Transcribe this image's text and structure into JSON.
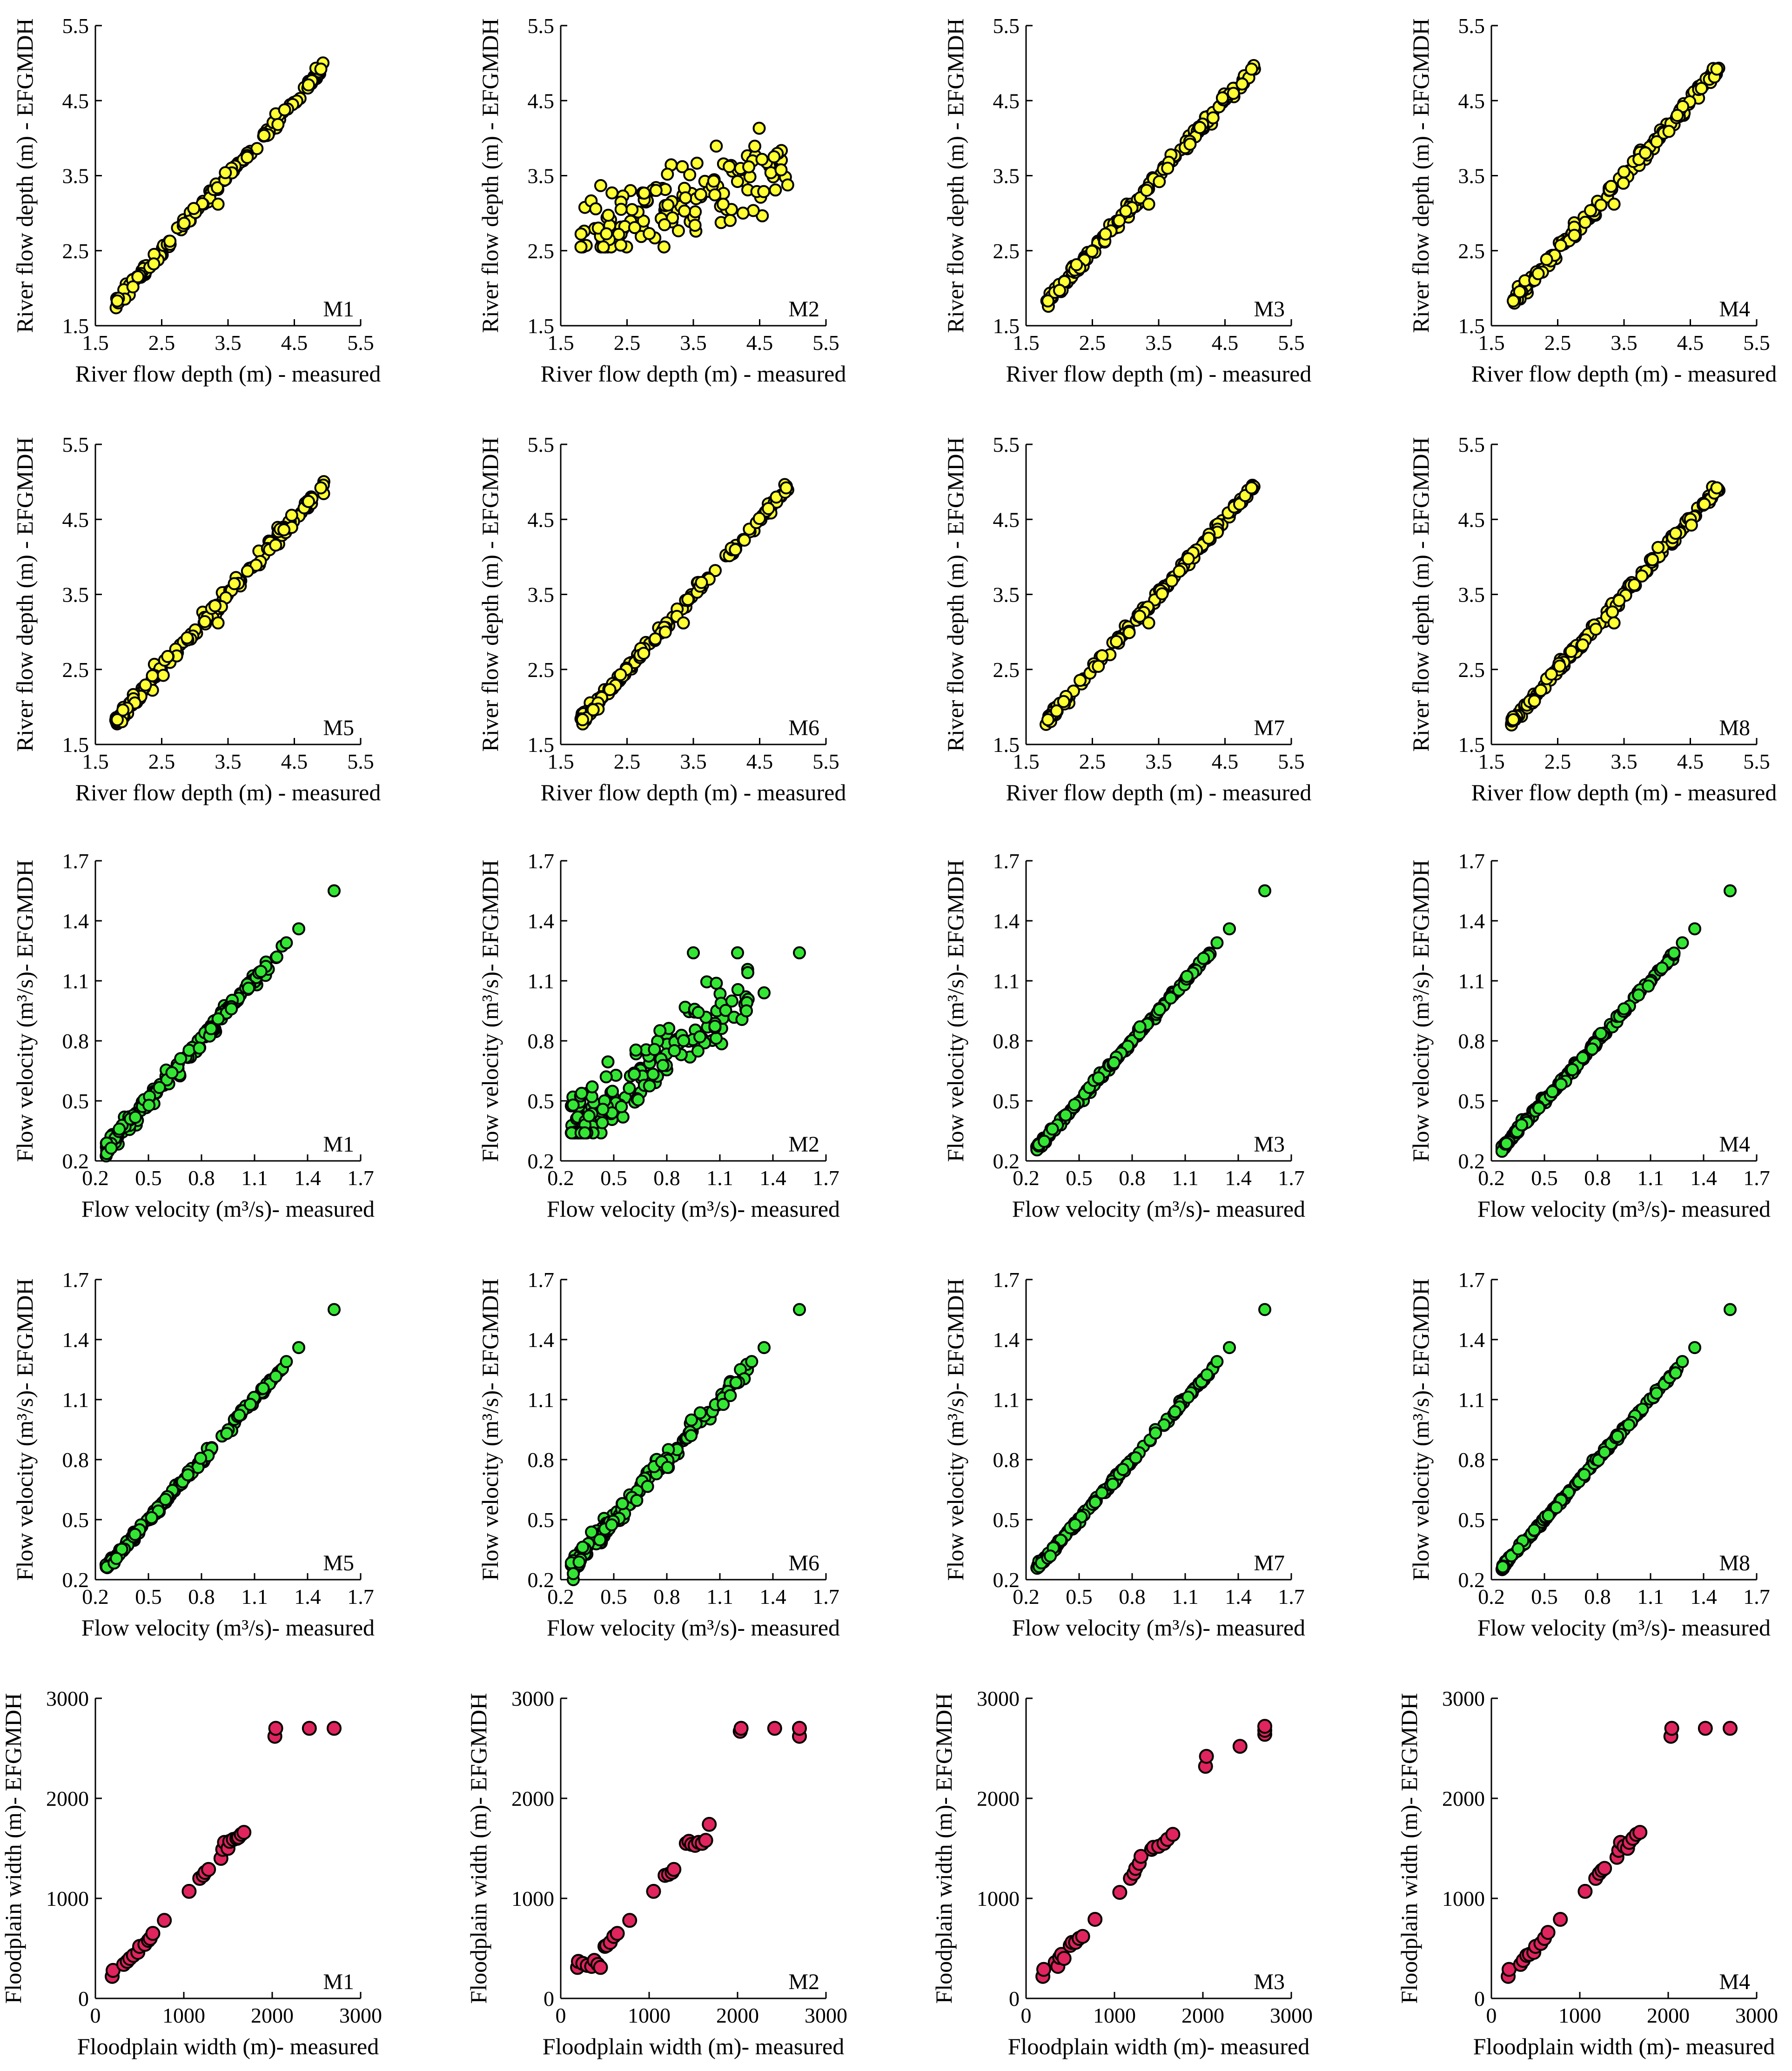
{
  "figure": {
    "rows": 5,
    "cols": 4
  },
  "colors": {
    "depth": "#ffff33",
    "velocity": "#33e633",
    "width": "#e0245e",
    "edge": "#000000"
  },
  "chart_data": [
    {
      "type": "scatter",
      "group": "depth",
      "label": "M1",
      "xlabel": "River flow depth (m) - measured",
      "ylabel": "River flow depth (m) - EFGMDH",
      "xlim": [
        1.5,
        5.5
      ],
      "ylim": [
        1.5,
        5.5
      ],
      "ticks": [
        "1.5",
        "2.5",
        "3.5",
        "4.5",
        "5.5"
      ],
      "noise": 0.04
    },
    {
      "type": "scatter",
      "group": "depth",
      "label": "M2",
      "xlabel": "River flow depth (m) - measured",
      "ylabel": "River flow depth (m) - EFGMDH",
      "xlim": [
        1.5,
        5.5
      ],
      "ylim": [
        1.5,
        5.5
      ],
      "ticks": [
        "1.5",
        "2.5",
        "3.5",
        "4.5",
        "5.5"
      ],
      "scatter_mode": "wide"
    },
    {
      "type": "scatter",
      "group": "depth",
      "label": "M3",
      "xlabel": "River flow depth (m) - measured",
      "ylabel": "River flow depth (m) - EFGMDH",
      "xlim": [
        1.5,
        5.5
      ],
      "ylim": [
        1.5,
        5.5
      ],
      "ticks": [
        "1.5",
        "2.5",
        "3.5",
        "4.5",
        "5.5"
      ],
      "noise": 0.04
    },
    {
      "type": "scatter",
      "group": "depth",
      "label": "M4",
      "xlabel": "River flow depth (m) - measured",
      "ylabel": "River flow depth (m) - EFGMDH",
      "xlim": [
        1.5,
        5.5
      ],
      "ylim": [
        1.5,
        5.5
      ],
      "ticks": [
        "1.5",
        "2.5",
        "3.5",
        "4.5",
        "5.5"
      ],
      "noise": 0.05
    },
    {
      "type": "scatter",
      "group": "depth",
      "label": "M5",
      "xlabel": "River flow depth (m) - measured",
      "ylabel": "River flow depth (m) - EFGMDH",
      "xlim": [
        1.5,
        5.5
      ],
      "ylim": [
        1.5,
        5.5
      ],
      "ticks": [
        "1.5",
        "2.5",
        "3.5",
        "4.5",
        "5.5"
      ],
      "noise": 0.05
    },
    {
      "type": "scatter",
      "group": "depth",
      "label": "M6",
      "xlabel": "River flow depth (m) - measured",
      "ylabel": "River flow depth (m) - EFGMDH",
      "xlim": [
        1.5,
        5.5
      ],
      "ylim": [
        1.5,
        5.5
      ],
      "ticks": [
        "1.5",
        "2.5",
        "3.5",
        "4.5",
        "5.5"
      ],
      "noise": 0.04
    },
    {
      "type": "scatter",
      "group": "depth",
      "label": "M7",
      "xlabel": "River flow depth (m) - measured",
      "ylabel": "River flow depth (m) - EFGMDH",
      "xlim": [
        1.5,
        5.5
      ],
      "ylim": [
        1.5,
        5.5
      ],
      "ticks": [
        "1.5",
        "2.5",
        "3.5",
        "4.5",
        "5.5"
      ],
      "noise": 0.03
    },
    {
      "type": "scatter",
      "group": "depth",
      "label": "M8",
      "xlabel": "River flow depth (m) - measured",
      "ylabel": "River flow depth (m) - EFGMDH",
      "xlim": [
        1.5,
        5.5
      ],
      "ylim": [
        1.5,
        5.5
      ],
      "ticks": [
        "1.5",
        "2.5",
        "3.5",
        "4.5",
        "5.5"
      ],
      "noise": 0.04
    },
    {
      "type": "scatter",
      "group": "velocity",
      "label": "M1",
      "xlabel": "Flow velocity (m³/s)- measured",
      "ylabel": "Flow velocity (m³/s)- EFGMDH",
      "xlim": [
        0.2,
        1.7
      ],
      "ylim": [
        0.2,
        1.7
      ],
      "ticks": [
        "0.2",
        "0.5",
        "0.8",
        "1.1",
        "1.4",
        "1.7"
      ],
      "noise": 0.02
    },
    {
      "type": "scatter",
      "group": "velocity",
      "label": "M2",
      "xlabel": "Flow velocity (m³/s)- measured",
      "ylabel": "Flow velocity (m³/s)- EFGMDH",
      "xlim": [
        0.2,
        1.7
      ],
      "ylim": [
        0.2,
        1.7
      ],
      "ticks": [
        "0.2",
        "0.5",
        "0.8",
        "1.1",
        "1.4",
        "1.7"
      ],
      "scatter_mode": "wide"
    },
    {
      "type": "scatter",
      "group": "velocity",
      "label": "M3",
      "xlabel": "Flow velocity (m³/s)- measured",
      "ylabel": "Flow velocity (m³/s)- EFGMDH",
      "xlim": [
        0.2,
        1.7
      ],
      "ylim": [
        0.2,
        1.7
      ],
      "ticks": [
        "0.2",
        "0.5",
        "0.8",
        "1.1",
        "1.4",
        "1.7"
      ],
      "noise": 0.008
    },
    {
      "type": "scatter",
      "group": "velocity",
      "label": "M4",
      "xlabel": "Flow velocity (m³/s)- measured",
      "ylabel": "Flow velocity (m³/s)- EFGMDH",
      "xlim": [
        0.2,
        1.7
      ],
      "ylim": [
        0.2,
        1.7
      ],
      "ticks": [
        "0.2",
        "0.5",
        "0.8",
        "1.1",
        "1.4",
        "1.7"
      ],
      "noise": 0.01
    },
    {
      "type": "scatter",
      "group": "velocity",
      "label": "M5",
      "xlabel": "Flow velocity (m³/s)- measured",
      "ylabel": "Flow velocity (m³/s)- EFGMDH",
      "xlim": [
        0.2,
        1.7
      ],
      "ylim": [
        0.2,
        1.7
      ],
      "ticks": [
        "0.2",
        "0.5",
        "0.8",
        "1.1",
        "1.4",
        "1.7"
      ],
      "noise": 0.01
    },
    {
      "type": "scatter",
      "group": "velocity",
      "label": "M6",
      "xlabel": "Flow velocity (m³/s)- measured",
      "ylabel": "Flow velocity (m³/s)- EFGMDH",
      "xlim": [
        0.2,
        1.7
      ],
      "ylim": [
        0.2,
        1.7
      ],
      "ticks": [
        "0.2",
        "0.5",
        "0.8",
        "1.1",
        "1.4",
        "1.7"
      ],
      "noise": 0.025
    },
    {
      "type": "scatter",
      "group": "velocity",
      "label": "M7",
      "xlabel": "Flow velocity (m³/s)- measured",
      "ylabel": "Flow velocity (m³/s)- EFGMDH",
      "xlim": [
        0.2,
        1.7
      ],
      "ylim": [
        0.2,
        1.7
      ],
      "ticks": [
        "0.2",
        "0.5",
        "0.8",
        "1.1",
        "1.4",
        "1.7"
      ],
      "noise": 0.008
    },
    {
      "type": "scatter",
      "group": "velocity",
      "label": "M8",
      "xlabel": "Flow velocity (m³/s)- measured",
      "ylabel": "Flow velocity (m³/s)- EFGMDH",
      "xlim": [
        0.2,
        1.7
      ],
      "ylim": [
        0.2,
        1.7
      ],
      "ticks": [
        "0.2",
        "0.5",
        "0.8",
        "1.1",
        "1.4",
        "1.7"
      ],
      "noise": 0.006
    },
    {
      "type": "scatter",
      "group": "width",
      "label": "M1",
      "xlabel": "Floodplain width (m)- measured",
      "ylabel": "Floodplain width (m)- EFGMDH",
      "xlim": [
        0,
        3000
      ],
      "ylim": [
        0,
        3000
      ],
      "ticks": [
        "0",
        "1000",
        "2000",
        "3000"
      ],
      "x": [
        190,
        200,
        320,
        360,
        390,
        430,
        480,
        500,
        560,
        600,
        620,
        650,
        780,
        1060,
        1180,
        1220,
        1240,
        1280,
        1420,
        1440,
        1460,
        1500,
        1520,
        1560,
        1600,
        1620,
        1650,
        1680,
        2030,
        2040,
        2420,
        2700
      ],
      "y": [
        220,
        280,
        340,
        370,
        400,
        430,
        460,
        520,
        540,
        580,
        600,
        650,
        780,
        1070,
        1200,
        1230,
        1260,
        1290,
        1400,
        1490,
        1560,
        1500,
        1570,
        1590,
        1600,
        1610,
        1640,
        1660,
        2620,
        2700,
        2700,
        2700
      ]
    },
    {
      "type": "scatter",
      "group": "width",
      "label": "M2",
      "xlabel": "Floodplain width (m)- measured",
      "ylabel": "Floodplain width (m)- EFGMDH",
      "xlim": [
        0,
        3000
      ],
      "ylim": [
        0,
        3000
      ],
      "ticks": [
        "0",
        "1000",
        "2000",
        "3000"
      ],
      "x": [
        190,
        200,
        250,
        300,
        350,
        380,
        420,
        450,
        500,
        520,
        560,
        600,
        640,
        780,
        1050,
        1180,
        1220,
        1260,
        1280,
        1420,
        1450,
        1480,
        1520,
        1560,
        1600,
        1640,
        1680,
        2030,
        2040,
        2420,
        2700,
        2700
      ],
      "y": [
        310,
        370,
        350,
        330,
        320,
        380,
        340,
        310,
        520,
        530,
        560,
        620,
        650,
        780,
        1070,
        1230,
        1240,
        1260,
        1290,
        1550,
        1570,
        1540,
        1530,
        1560,
        1550,
        1580,
        1740,
        2670,
        2700,
        2700,
        2620,
        2700
      ]
    },
    {
      "type": "scatter",
      "group": "width",
      "label": "M3",
      "xlabel": "Floodplain width (m)- measured",
      "ylabel": "Floodplain width (m)- EFGMDH",
      "xlim": [
        0,
        3000
      ],
      "ylim": [
        0,
        3000
      ],
      "ticks": [
        "0",
        "1000",
        "2000",
        "3000"
      ],
      "x": [
        190,
        200,
        330,
        360,
        380,
        400,
        430,
        500,
        520,
        560,
        600,
        640,
        780,
        1060,
        1180,
        1220,
        1240,
        1280,
        1300,
        1420,
        1440,
        1500,
        1560,
        1600,
        1660,
        2030,
        2040,
        2420,
        2700,
        2700,
        2700
      ],
      "y": [
        220,
        290,
        360,
        320,
        410,
        440,
        400,
        530,
        560,
        560,
        600,
        620,
        790,
        1060,
        1200,
        1250,
        1300,
        1350,
        1420,
        1490,
        1510,
        1520,
        1550,
        1590,
        1640,
        2320,
        2420,
        2520,
        2640,
        2680,
        2720
      ]
    },
    {
      "type": "scatter",
      "group": "width",
      "label": "M4",
      "xlabel": "Floodplain width (m)- measured",
      "ylabel": "Floodplain width (m)- EFGMDH",
      "xlim": [
        0,
        3000
      ],
      "ylim": [
        0,
        3000
      ],
      "ticks": [
        "0",
        "1000",
        "2000",
        "3000"
      ],
      "x": [
        190,
        200,
        330,
        360,
        400,
        430,
        480,
        500,
        560,
        600,
        640,
        780,
        1060,
        1180,
        1220,
        1250,
        1280,
        1420,
        1440,
        1460,
        1500,
        1540,
        1560,
        1600,
        1640,
        1680,
        2030,
        2040,
        2420,
        2700
      ],
      "y": [
        220,
        290,
        340,
        380,
        430,
        440,
        460,
        520,
        550,
        600,
        660,
        790,
        1070,
        1200,
        1250,
        1280,
        1300,
        1410,
        1480,
        1560,
        1520,
        1500,
        1560,
        1600,
        1640,
        1660,
        2620,
        2700,
        2700,
        2700
      ]
    }
  ]
}
